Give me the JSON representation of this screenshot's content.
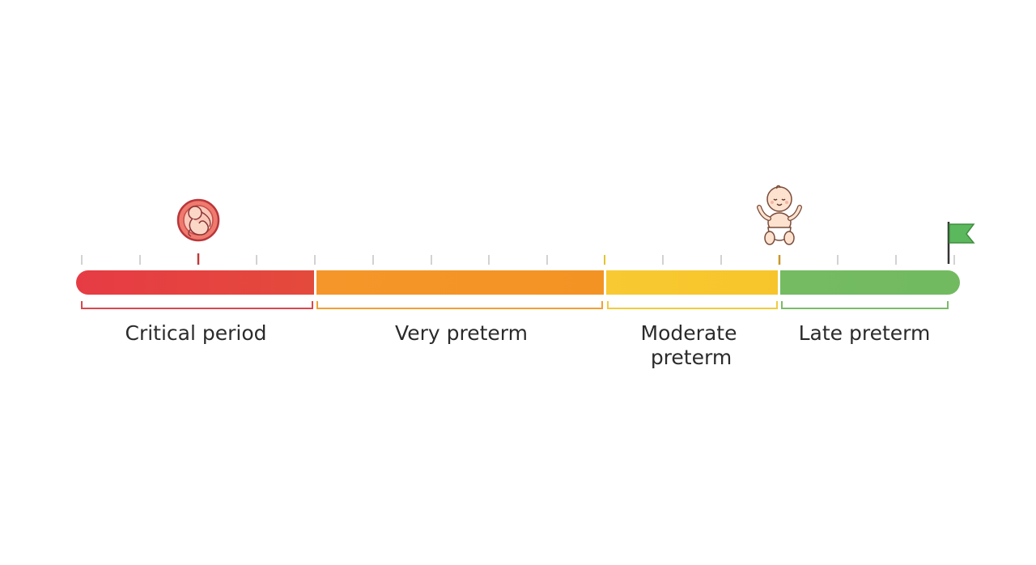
{
  "timeline": {
    "segments": [
      {
        "id": "critical",
        "label_lines": [
          "Critical period"
        ],
        "color": "#e63b44",
        "color_end": "#e44a3c"
      },
      {
        "id": "very",
        "label_lines": [
          "Very preterm"
        ],
        "color": "#f5962a",
        "color_end": "#f39324"
      },
      {
        "id": "moderate",
        "label_lines": [
          "Moderate",
          "preterm"
        ],
        "color": "#f8c932",
        "color_end": "#f7c52b"
      },
      {
        "id": "late",
        "label_lines": [
          "Late preterm"
        ],
        "color": "#74bb62",
        "color_end": "#72ba60"
      }
    ],
    "tick_color": "#cccccc",
    "icons": [
      "fetus-icon",
      "baby-icon",
      "finish-flag-icon"
    ],
    "flag_color": "#5cb85c"
  }
}
